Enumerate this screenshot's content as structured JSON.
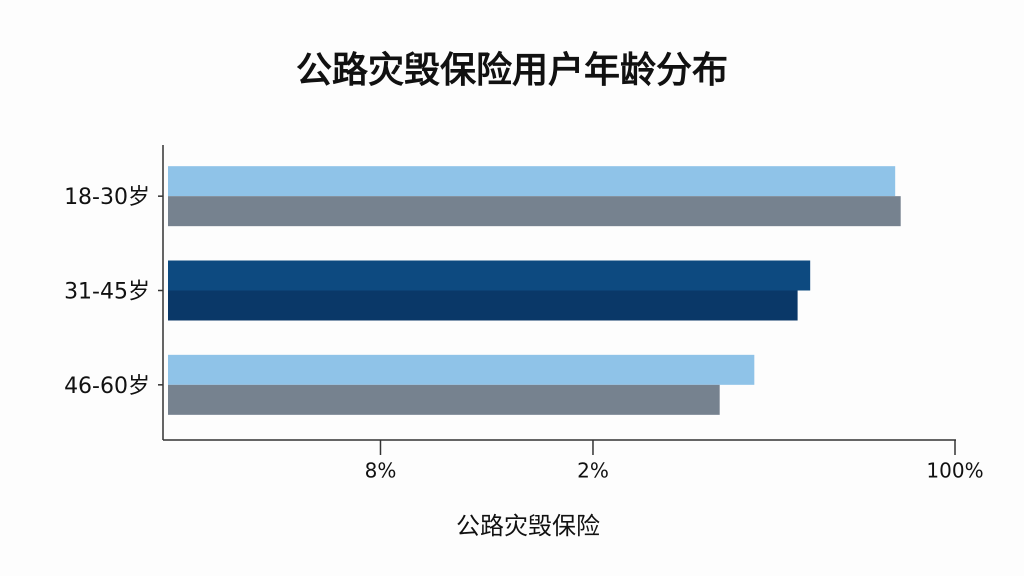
{
  "chart_data": {
    "type": "hbar",
    "title": "公路灾毁保险用户年龄分布",
    "x_label": "公路灾毁保险",
    "categories": [
      "18-30岁",
      "31-45岁",
      "46-60岁"
    ],
    "series": [
      {
        "colors": [
          "#8fc3e8",
          "#0d4a80",
          "#8fc3e8"
        ],
        "values": [
          92.4,
          81.6,
          74.5
        ]
      },
      {
        "colors": [
          "#76828f",
          "#0a3868",
          "#76828f"
        ],
        "values": [
          93.1,
          80.0,
          70.1
        ]
      }
    ],
    "xlim": [
      0,
      100
    ],
    "xticks": [
      {
        "value": 27,
        "label": "8%"
      },
      {
        "value": 54,
        "label": "2%"
      },
      {
        "value": 100,
        "label": "100%"
      }
    ]
  }
}
